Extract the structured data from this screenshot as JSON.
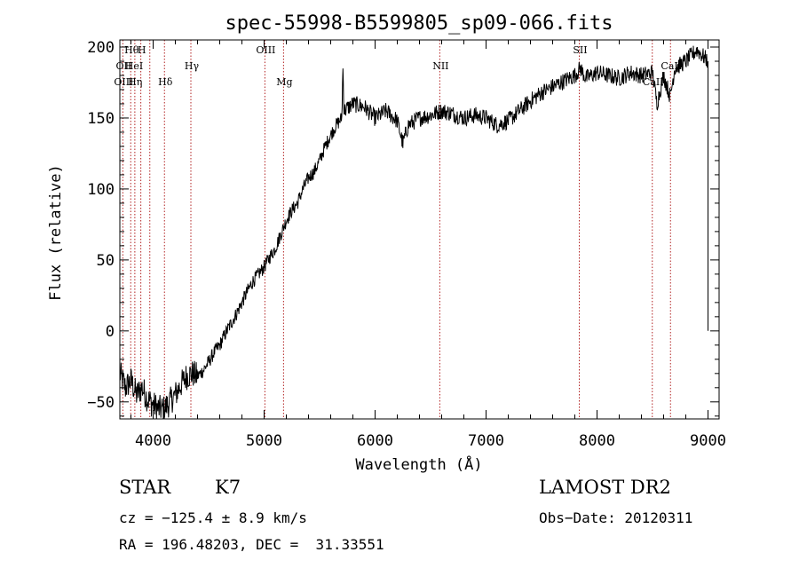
{
  "chart_data": {
    "type": "line",
    "title": "spec-55998-B5599805_sp09-066.fits",
    "xlabel": "Wavelength (Å)",
    "ylabel": "Flux (relative)",
    "xlim": [
      3700,
      9100
    ],
    "ylim": [
      -62,
      205
    ],
    "xticks": [
      "4000",
      "5000",
      "6000",
      "7000",
      "8000",
      "9000"
    ],
    "yticks": [
      "-50",
      "0",
      "50",
      "100",
      "150",
      "200"
    ],
    "series": [
      {
        "x": [
          3700,
          3750,
          3800,
          3850,
          3900,
          3950,
          4000,
          4050,
          4100,
          4150,
          4200,
          4250,
          4300,
          4350,
          4400,
          4450,
          4500,
          4550,
          4600,
          4650,
          4700,
          4750,
          4800,
          4850,
          4900,
          4950,
          5000,
          5050,
          5100,
          5150,
          5200,
          5250,
          5300,
          5350,
          5400,
          5450,
          5500,
          5550,
          5600,
          5650,
          5700,
          5710,
          5720,
          5800,
          5900,
          6000,
          6100,
          6200,
          6250,
          6300,
          6400,
          6500,
          6600,
          6700,
          6800,
          6900,
          7000,
          7100,
          7200,
          7300,
          7400,
          7500,
          7600,
          7700,
          7800,
          7850,
          7900,
          8000,
          8100,
          8200,
          8300,
          8400,
          8500,
          8540,
          8600,
          8660,
          8700,
          8800,
          8900,
          9000
        ],
        "y": [
          -30,
          -40,
          -35,
          -45,
          -40,
          -48,
          -52,
          -55,
          -55,
          -50,
          -45,
          -38,
          -32,
          -30,
          -32,
          -28,
          -22,
          -15,
          -10,
          -2,
          5,
          12,
          20,
          28,
          35,
          40,
          45,
          52,
          58,
          68,
          78,
          85,
          90,
          100,
          108,
          112,
          120,
          130,
          138,
          145,
          150,
          185,
          155,
          160,
          158,
          150,
          155,
          148,
          132,
          145,
          150,
          152,
          155,
          153,
          150,
          152,
          150,
          145,
          148,
          155,
          162,
          168,
          172,
          176,
          180,
          185,
          178,
          182,
          180,
          178,
          182,
          180,
          182,
          160,
          180,
          165,
          185,
          190,
          198,
          190
        ]
      }
    ],
    "spectral_lines": [
      {
        "name": "Hθ",
        "x": 3798,
        "row": 0
      },
      {
        "name": "H",
        "x": 3889,
        "row": 0
      },
      {
        "name": "OII",
        "x": 3727,
        "row": 1
      },
      {
        "name": "HeI",
        "x": 3820,
        "row": 1
      },
      {
        "name": "Hγ",
        "x": 4340,
        "row": 1
      },
      {
        "name": "OIII",
        "x": 5007,
        "row": 0
      },
      {
        "name": "NII",
        "x": 6583,
        "row": 1
      },
      {
        "name": "SII",
        "x": 7840,
        "row": 0
      },
      {
        "name": "OIII",
        "x": 3727,
        "row": 2
      },
      {
        "name": "Hη",
        "x": 3830,
        "row": 2
      },
      {
        "name": "Hδ",
        "x": 4102,
        "row": 2
      },
      {
        "name": "Mg",
        "x": 5175,
        "row": 2
      },
      {
        "name": "CaII",
        "x": 8498,
        "row": 2
      },
      {
        "name": "CaII",
        "x": 8662,
        "row": 1
      }
    ],
    "line_markers_x": [
      3727,
      3798,
      3835,
      3889,
      3970,
      4102,
      4340,
      5007,
      5175,
      6583,
      7840,
      8498,
      8662
    ]
  },
  "info": {
    "type_label": "STAR",
    "subclass": "K7",
    "survey": "LAMOST DR2",
    "cz": "cz = −125.4 ± 8.9 km/s",
    "obs_date": "Obs−Date: 20120311",
    "coords": "RA = 196.48203, DEC =  31.33551"
  },
  "colors": {
    "axis": "#000000",
    "spectrum": "#000000",
    "marker": "#b22222"
  }
}
